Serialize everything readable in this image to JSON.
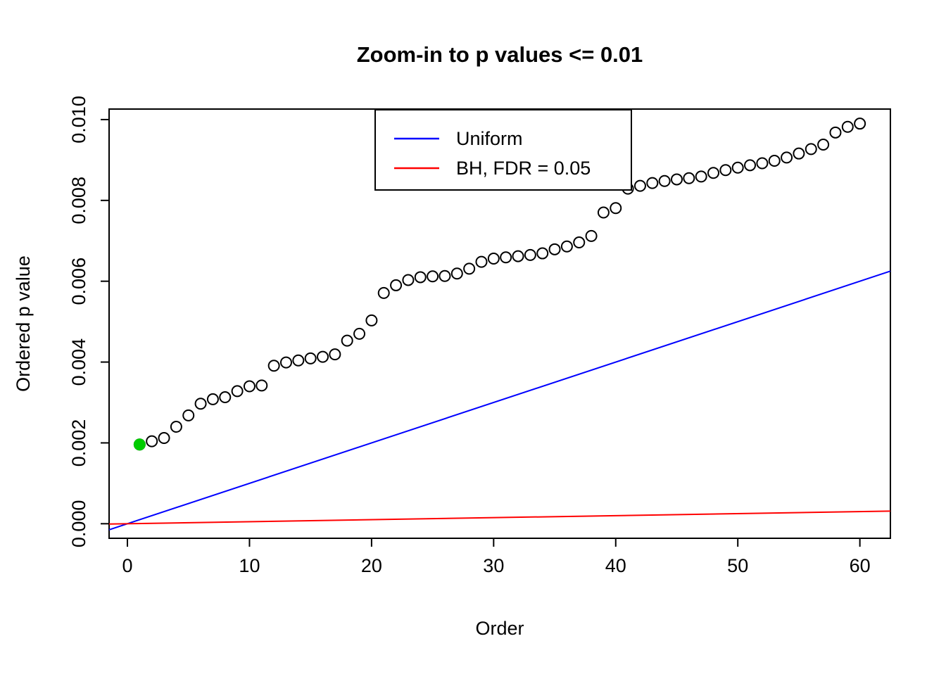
{
  "chart_data": {
    "type": "scatter",
    "title": "Zoom-in to p values <= 0.01",
    "xlabel": "Order",
    "ylabel": "Ordered p value",
    "xlim": [
      -1.5,
      62.5
    ],
    "ylim": [
      -0.00036,
      0.01026
    ],
    "x_ticks": [
      0,
      10,
      20,
      30,
      40,
      50,
      60
    ],
    "x_tick_labels": [
      "0",
      "10",
      "20",
      "30",
      "40",
      "50",
      "60"
    ],
    "y_ticks": [
      0.0,
      0.002,
      0.004,
      0.006,
      0.008,
      0.01
    ],
    "y_tick_labels": [
      "0.000",
      "0.002",
      "0.004",
      "0.006",
      "0.008",
      "0.010"
    ],
    "grid": false,
    "legend": {
      "position": "top-center",
      "entries": [
        {
          "label": "Uniform",
          "color": "#0000FF"
        },
        {
          "label": "BH, FDR = 0.05",
          "color": "#FF0000"
        }
      ]
    },
    "series": [
      {
        "name": "ordered-p-values",
        "type": "points",
        "marker": "open-circle",
        "color": "#000000",
        "x": [
          1,
          2,
          3,
          4,
          5,
          6,
          7,
          8,
          9,
          10,
          11,
          12,
          13,
          14,
          15,
          16,
          17,
          18,
          19,
          20,
          21,
          22,
          23,
          24,
          25,
          26,
          27,
          28,
          29,
          30,
          31,
          32,
          33,
          34,
          35,
          36,
          37,
          38,
          39,
          40,
          41,
          42,
          43,
          44,
          45,
          46,
          47,
          48,
          49,
          50,
          51,
          52,
          53,
          54,
          55,
          56,
          57,
          58,
          59,
          60
        ],
        "y": [
          0.00196,
          0.00204,
          0.00212,
          0.0024,
          0.00268,
          0.00297,
          0.00308,
          0.00313,
          0.00328,
          0.0034,
          0.00342,
          0.00391,
          0.00399,
          0.00404,
          0.00409,
          0.00413,
          0.00419,
          0.00453,
          0.0047,
          0.00503,
          0.00571,
          0.0059,
          0.00603,
          0.0061,
          0.00612,
          0.00613,
          0.00619,
          0.00631,
          0.00648,
          0.00656,
          0.00659,
          0.00662,
          0.00665,
          0.00669,
          0.00679,
          0.00686,
          0.00696,
          0.00712,
          0.0077,
          0.00781,
          0.00829,
          0.00836,
          0.00843,
          0.00848,
          0.00852,
          0.00855,
          0.00859,
          0.00868,
          0.00875,
          0.00881,
          0.00887,
          0.00892,
          0.00898,
          0.00906,
          0.00916,
          0.00927,
          0.00938,
          0.00968,
          0.00982,
          0.0099
        ]
      },
      {
        "name": "first-significant-point",
        "type": "points",
        "marker": "filled-circle",
        "color": "#00CC00",
        "x": [
          1
        ],
        "y": [
          0.00196
        ]
      },
      {
        "name": "Uniform",
        "type": "line",
        "color": "#0000FF",
        "slope": 0.0001,
        "intercept": 0
      },
      {
        "name": "BH, FDR = 0.05",
        "type": "line",
        "color": "#FF0000",
        "slope": 5e-06,
        "intercept": 0
      }
    ]
  }
}
